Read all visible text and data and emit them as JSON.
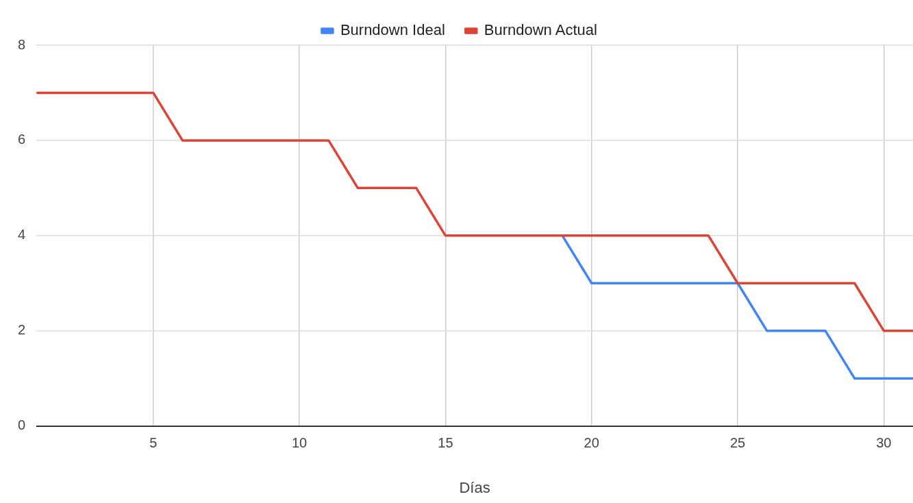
{
  "chart_data": {
    "type": "line",
    "xlabel": "Días",
    "x": [
      1,
      2,
      3,
      4,
      5,
      6,
      7,
      8,
      9,
      10,
      11,
      12,
      13,
      14,
      15,
      16,
      17,
      18,
      19,
      20,
      21,
      22,
      23,
      24,
      25,
      26,
      27,
      28,
      29,
      30,
      31
    ],
    "series": [
      {
        "name": "Burndown Ideal",
        "color": "#4285f4",
        "values": [
          null,
          null,
          null,
          null,
          null,
          null,
          null,
          null,
          null,
          null,
          null,
          null,
          null,
          null,
          null,
          null,
          null,
          null,
          4,
          3,
          3,
          3,
          3,
          3,
          3,
          2,
          2,
          2,
          1,
          1,
          1
        ]
      },
      {
        "name": "Burndown Actual",
        "color": "#db4437",
        "values": [
          7,
          7,
          7,
          7,
          7,
          6,
          6,
          6,
          6,
          6,
          6,
          5,
          5,
          5,
          4,
          4,
          4,
          4,
          4,
          4,
          4,
          4,
          4,
          4,
          3,
          3,
          3,
          3,
          3,
          2,
          2
        ]
      }
    ],
    "xlim": [
      1,
      31
    ],
    "xticks": [
      5,
      10,
      15,
      20,
      25,
      30
    ],
    "ylim": [
      0,
      8
    ],
    "yticks": [
      0,
      2,
      4,
      6,
      8
    ],
    "grid": true,
    "legend": "top",
    "marker": "none",
    "line_style": "solid"
  }
}
